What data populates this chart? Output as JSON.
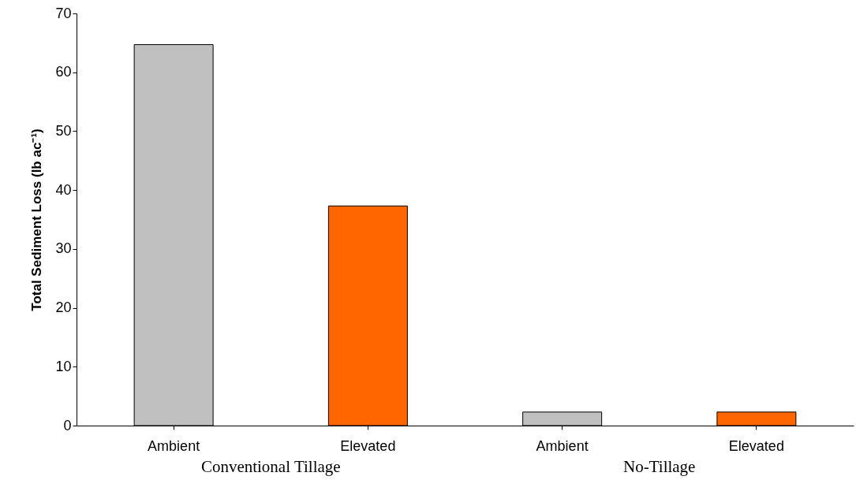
{
  "chart_data": {
    "type": "bar",
    "categories": [
      "Ambient",
      "Elevated",
      "Ambient",
      "Elevated"
    ],
    "values": [
      64.7,
      37.3,
      2.3,
      2.3
    ],
    "colors": [
      "#c0c0c0",
      "#ff6600",
      "#c0c0c0",
      "#ff6600"
    ],
    "ylabel": "Total Sediment Loss (lb ac⁻¹)",
    "ylim": [
      0,
      70
    ],
    "yticks": [
      0,
      10,
      20,
      30,
      40,
      50,
      60,
      70
    ],
    "annotations": [
      "Conventional Tillage",
      "No-Tillage"
    ],
    "grid": false
  }
}
